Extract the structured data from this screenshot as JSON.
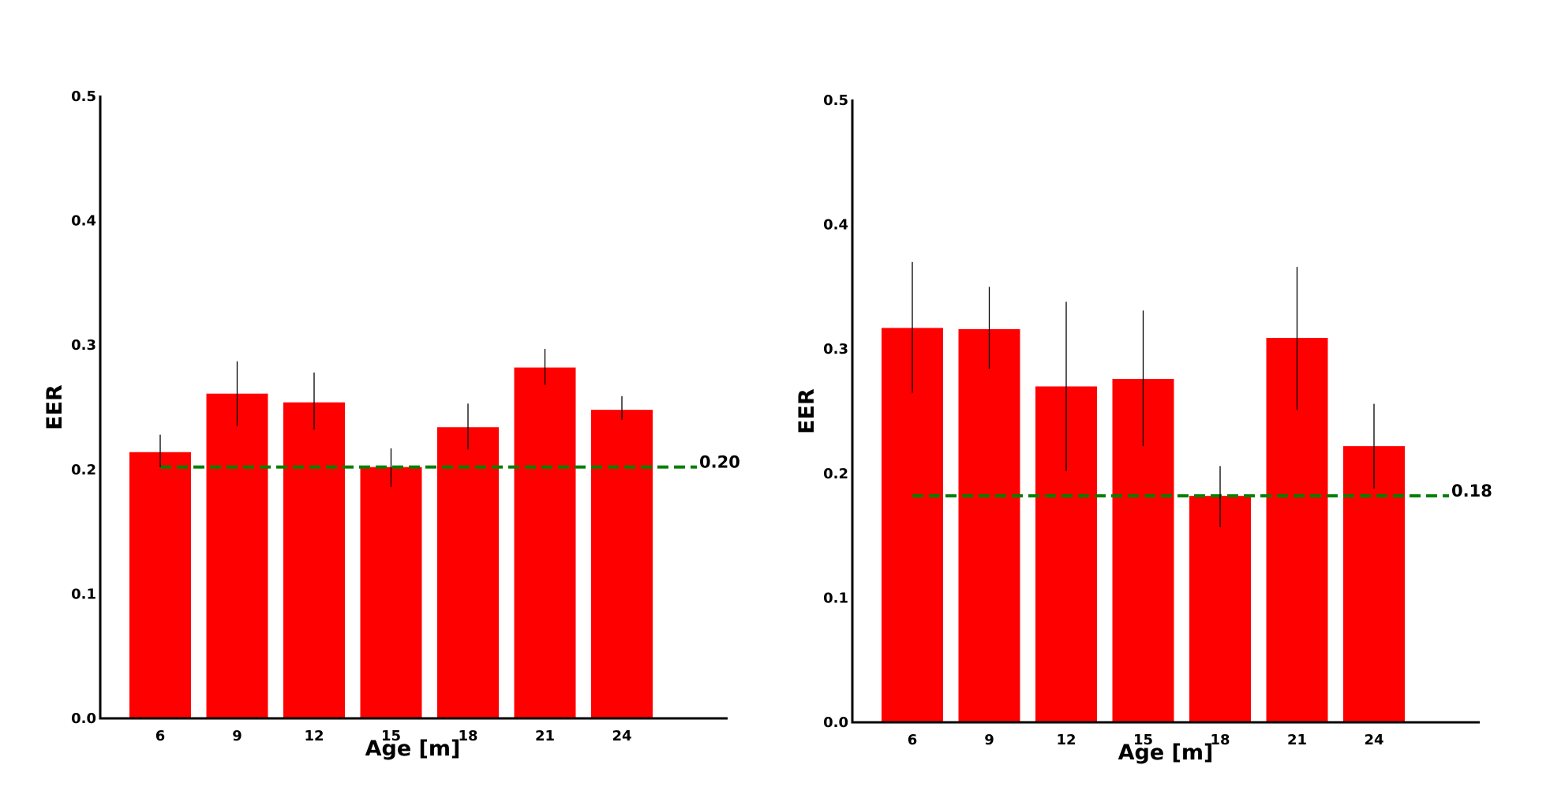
{
  "colors": {
    "bar": "#ff0000",
    "reference_line": "#008000",
    "error_bar": "#000000",
    "axis": "#000000"
  },
  "chart_data": [
    {
      "type": "bar",
      "title": "",
      "xlabel": "Age [m]",
      "ylabel": "EER",
      "categories": [
        "6",
        "9",
        "12",
        "15",
        "18",
        "21",
        "24"
      ],
      "values": [
        0.214,
        0.261,
        0.254,
        0.202,
        0.234,
        0.282,
        0.248
      ],
      "error_low": [
        0.202,
        0.235,
        0.232,
        0.186,
        0.216,
        0.268,
        0.24
      ],
      "error_high": [
        0.228,
        0.287,
        0.278,
        0.217,
        0.253,
        0.297,
        0.259
      ],
      "yticks": [
        "0.0",
        "0.1",
        "0.2",
        "0.3",
        "0.4",
        "0.5"
      ],
      "ylim": [
        0,
        0.5
      ],
      "reference_line": {
        "value": 0.202,
        "label": "0.20",
        "style": "dashed"
      },
      "grid": false,
      "legend": "none"
    },
    {
      "type": "bar",
      "title": "",
      "xlabel": "Age [m]",
      "ylabel": "EER",
      "categories": [
        "6",
        "9",
        "12",
        "15",
        "18",
        "21",
        "24"
      ],
      "values": [
        0.317,
        0.316,
        0.27,
        0.276,
        0.182,
        0.309,
        0.222
      ],
      "error_low": [
        0.265,
        0.284,
        0.202,
        0.222,
        0.157,
        0.251,
        0.188
      ],
      "error_high": [
        0.37,
        0.35,
        0.338,
        0.331,
        0.206,
        0.366,
        0.256
      ],
      "yticks": [
        "0.0",
        "0.1",
        "0.2",
        "0.3",
        "0.4",
        "0.5"
      ],
      "ylim": [
        0,
        0.5
      ],
      "reference_line": {
        "value": 0.182,
        "label": "0.18",
        "style": "dashed"
      },
      "grid": false,
      "legend": "none"
    }
  ]
}
